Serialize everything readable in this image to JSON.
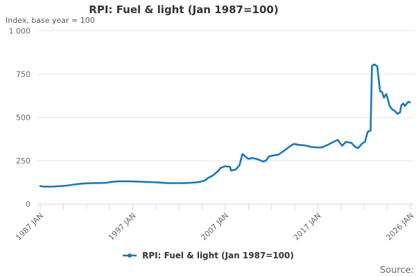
{
  "header": {
    "title": "RPI: Fuel & light (Jan 1987=100)",
    "subtitle": "Index, base year = 100"
  },
  "legend": {
    "label": "RPI: Fuel & light (Jan 1987=100)",
    "marker_icon": "line-dot-icon"
  },
  "source": {
    "label": "Source:"
  },
  "colors": {
    "series": "#1976b8",
    "grid": "#e6e6e6",
    "axis": "#ccd6eb",
    "tick_label": "#666666",
    "title_text": "#333333",
    "source_text": "#666666"
  },
  "y_axis": {
    "ticks": [
      {
        "value": 0,
        "label": "0"
      },
      {
        "value": 250,
        "label": "250"
      },
      {
        "value": 500,
        "label": "500"
      },
      {
        "value": 750,
        "label": "750"
      },
      {
        "value": 1000,
        "label": "1 000"
      }
    ]
  },
  "x_axis": {
    "tick_count": 17,
    "labels": [
      {
        "tick_index": 0,
        "label": "1987 JAN"
      },
      {
        "tick_index": 4,
        "label": "1997 JAN"
      },
      {
        "tick_index": 8,
        "label": "2007 JAN"
      },
      {
        "tick_index": 12,
        "label": "2017 JAN"
      },
      {
        "tick_index": 16,
        "label": "2026 JAN"
      }
    ]
  },
  "chart_data": {
    "type": "line",
    "title": "RPI: Fuel & light (Jan 1987=100)",
    "subtitle": "Index, base year = 100",
    "xlabel": "",
    "ylabel": "Index, base year = 100",
    "xlim": [
      1987,
      2026
    ],
    "ylim": [
      0,
      1000
    ],
    "grid": true,
    "legend_position": "bottom",
    "x_tick_labels": [
      "1987 JAN",
      "1997 JAN",
      "2007 JAN",
      "2017 JAN",
      "2026 JAN"
    ],
    "y_tick_labels": [
      "0",
      "250",
      "500",
      "750",
      "1 000"
    ],
    "series": [
      {
        "name": "RPI: Fuel & light (Jan 1987=100)",
        "x": [
          1987.0,
          1987.3,
          1987.8,
          1988.3,
          1988.8,
          1989.3,
          1989.8,
          1990.3,
          1990.8,
          1991.3,
          1991.8,
          1992.3,
          1992.8,
          1993.3,
          1993.8,
          1994.1,
          1994.35,
          1994.8,
          1995.3,
          1995.8,
          1996.3,
          1996.8,
          1997.3,
          1997.8,
          1998.3,
          1998.8,
          1999.3,
          1999.8,
          2000.3,
          2000.8,
          2001.3,
          2001.8,
          2002.3,
          2002.8,
          2003.3,
          2003.8,
          2004.3,
          2004.7,
          2005.2,
          2005.77,
          2006.0,
          2006.5,
          2007.0,
          2007.1,
          2007.6,
          2008.0,
          2008.3,
          2008.9,
          2009.4,
          2009.9,
          2010.5,
          2010.8,
          2011.1,
          2011.6,
          2012.1,
          2012.7,
          2013.2,
          2013.7,
          2014.3,
          2014.9,
          2015.6,
          2016.2,
          2016.7,
          2017.3,
          2017.8,
          2018.35,
          2018.8,
          2019.2,
          2019.8,
          2020.2,
          2020.5,
          2020.9,
          2021.2,
          2021.5,
          2021.8,
          2021.95,
          2022.2,
          2022.5,
          2022.8,
          2023.0,
          2023.2,
          2023.45,
          2023.65,
          2023.8,
          2024.1,
          2024.4,
          2024.6,
          2024.9,
          2025.05,
          2025.25,
          2025.4,
          2025.6,
          2025.8,
          2025.95
        ],
        "values": [
          103,
          101,
          100,
          100,
          102,
          104,
          106,
          110,
          114,
          117,
          119,
          120,
          121,
          121,
          122,
          123,
          127,
          129,
          131,
          131,
          131,
          130,
          129,
          128,
          127,
          126,
          125,
          123,
          121,
          120,
          120,
          120,
          121,
          122,
          124,
          127,
          135,
          151,
          165,
          192,
          208,
          218,
          214,
          193,
          199,
          225,
          288,
          261,
          265,
          258,
          245,
          252,
          274,
          281,
          285,
          308,
          329,
          347,
          341,
          338,
          329,
          326,
          327,
          342,
          356,
          370,
          336,
          359,
          352,
          328,
          323,
          349,
          359,
          417,
          424,
          798,
          806,
          795,
          650,
          648,
          614,
          635,
          600,
          566,
          545,
          536,
          521,
          528,
          571,
          580,
          566,
          579,
          591,
          586
        ]
      }
    ]
  }
}
